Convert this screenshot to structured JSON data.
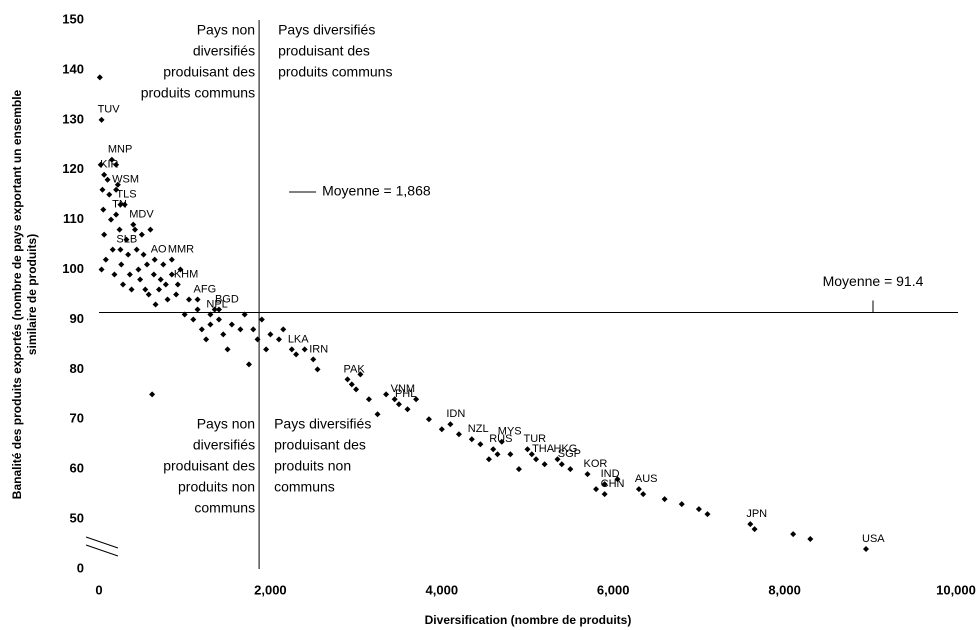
{
  "chart_data": {
    "type": "scatter",
    "xlabel": "Diversification (nombre de produits)",
    "ylabel": [
      "Banalité des produits exportés (nombre de pays exportant un ensemble",
      "similaire de produits)"
    ],
    "xlim": [
      0,
      10000
    ],
    "ylim": [
      40,
      150
    ],
    "xticks": [
      0,
      {
        "value": 2000,
        "label": "2,000"
      },
      {
        "value": 4000,
        "label": "4,000"
      },
      {
        "value": 6000,
        "label": "6,000"
      },
      {
        "value": 8000,
        "label": "8,000"
      },
      {
        "value": 10000,
        "label": "10,000"
      }
    ],
    "yticks": [
      {
        "value": 40,
        "label": "0"
      },
      50,
      60,
      70,
      80,
      90,
      100,
      110,
      120,
      130,
      140,
      150
    ],
    "reference_lines": [
      {
        "axis": "x",
        "value": 1868,
        "label": "Moyenne = 1,868"
      },
      {
        "axis": "y",
        "value": 91.4,
        "label": "Moyenne = 91.4"
      }
    ],
    "quadrants": {
      "top_left": [
        "Pays non",
        "diversifiés",
        "produisant des",
        "produits communs"
      ],
      "top_right": [
        "Pays diversifiés",
        "produisant des",
        "produits communs"
      ],
      "bottom_left": [
        "Pays non",
        "diversifiés",
        "produisant des",
        "produits non",
        "communs"
      ],
      "bottom_right": [
        "Pays diversifiés",
        "produisant des",
        "produits non",
        "communs"
      ]
    },
    "series": [
      {
        "color": "#000000",
        "x": [
          30,
          150,
          60,
          200,
          250,
          200,
          400,
          250,
          650,
          850,
          920,
          1150,
          1400,
          1300,
          2250,
          2500,
          2900,
          3450,
          3500,
          4100,
          4350,
          4700,
          4600,
          5000,
          5100,
          5350,
          5400,
          5700,
          5900,
          5900,
          6300,
          7600,
          8950,
          10,
          20,
          40,
          50,
          60,
          80,
          30,
          100,
          120,
          140,
          160,
          180,
          200,
          220,
          240,
          260,
          280,
          300,
          320,
          340,
          360,
          380,
          420,
          440,
          460,
          480,
          500,
          520,
          540,
          560,
          580,
          600,
          620,
          640,
          660,
          700,
          720,
          750,
          780,
          800,
          850,
          900,
          950,
          1000,
          1050,
          1100,
          1150,
          1200,
          1250,
          1300,
          1350,
          1400,
          1450,
          1500,
          1550,
          1650,
          1700,
          1750,
          1800,
          1850,
          1900,
          1950,
          2000,
          2100,
          2150,
          2300,
          2400,
          2550,
          2950,
          3000,
          3050,
          3150,
          3250,
          3350,
          3600,
          3700,
          3850,
          4000,
          4200,
          4450,
          4550,
          4650,
          4800,
          4900,
          5050,
          5200,
          5500,
          5800,
          6050,
          6350,
          6600,
          6800,
          7000,
          7100,
          7650,
          8100,
          8300
        ],
        "values": [
          130,
          122,
          119,
          116,
          113,
          111,
          109,
          104,
          102,
          102,
          97,
          94,
          92,
          91,
          84,
          82,
          78,
          74,
          73,
          69,
          66,
          65.5,
          64,
          64,
          62,
          62,
          61,
          59,
          57,
          55,
          56,
          49,
          44,
          138.5,
          121,
          116,
          112,
          107,
          102,
          100,
          118,
          115,
          110,
          104,
          99,
          121,
          117,
          108,
          101,
          97,
          113,
          106,
          103,
          99,
          96,
          108,
          104,
          100,
          98,
          107,
          103,
          96,
          101,
          95,
          108,
          75,
          99,
          93,
          96,
          98,
          101,
          97,
          94,
          99,
          95,
          100,
          91,
          94,
          90,
          92,
          88,
          86,
          89,
          92,
          90,
          87,
          84,
          89,
          88,
          91,
          81,
          88,
          86,
          90,
          84,
          87,
          86,
          88,
          83,
          84,
          80,
          77,
          76,
          79,
          74,
          71,
          75,
          72,
          74,
          70,
          68,
          67,
          65,
          62,
          63,
          63,
          60,
          63,
          61,
          60,
          56,
          58,
          55,
          54,
          53,
          52,
          51,
          48,
          47,
          46
        ],
        "labels": [
          "TUV",
          "MNP",
          "KIR",
          "WSM",
          "TLS",
          "TN",
          "MDV",
          "SLB",
          "AO",
          "MMR",
          "KHM",
          "AFG",
          "BGD",
          "NPL",
          "LKA",
          "IRN",
          "PAK",
          "VNM",
          "PHL",
          "IDN",
          "NZL",
          "MYS",
          "RUS",
          "TUR",
          "THA",
          "HKG",
          "SGP",
          "KOR",
          "IND",
          "CHN",
          "AUS",
          "JPN",
          "USA",
          null,
          null,
          null,
          null,
          null,
          null,
          null,
          null,
          null,
          null,
          null,
          null,
          null,
          null,
          null,
          null,
          null,
          null,
          null,
          null,
          null,
          null,
          null,
          null,
          null,
          null,
          null,
          null,
          null,
          null,
          null,
          null,
          null,
          null,
          null,
          null,
          null,
          null,
          null,
          null,
          null,
          null,
          null,
          null,
          null,
          null,
          null,
          null,
          null,
          null,
          null,
          null,
          null,
          null,
          null,
          null,
          null,
          null,
          null,
          null,
          null,
          null,
          null,
          null,
          null,
          null,
          null,
          null,
          null,
          null,
          null,
          null,
          null,
          null,
          null,
          null,
          null,
          null,
          null,
          null,
          null,
          null,
          null,
          null,
          null,
          null,
          null,
          null,
          null,
          null,
          null,
          null,
          null,
          null
        ]
      }
    ]
  }
}
